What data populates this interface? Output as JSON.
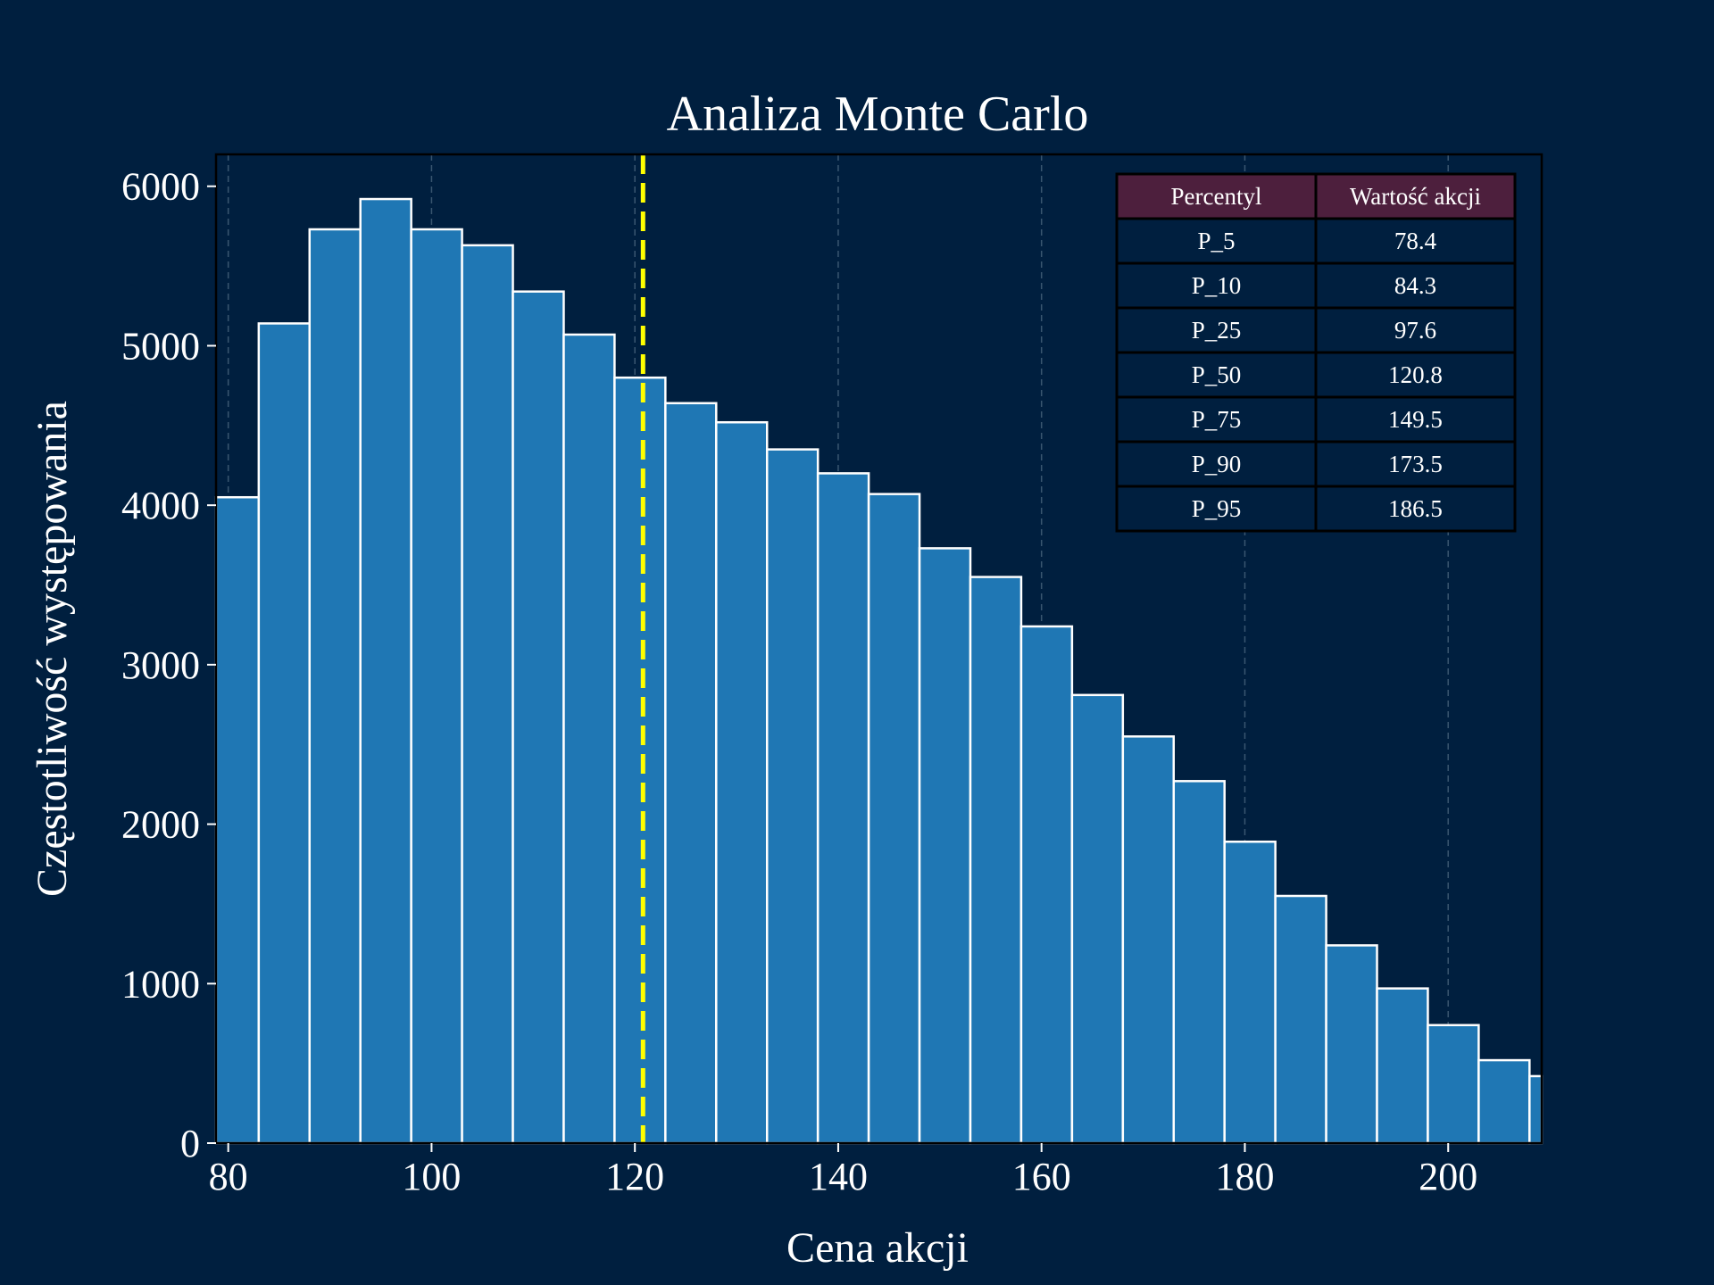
{
  "colors": {
    "background": "#001f3f",
    "bar_fill": "#1f77b4",
    "bar_edge": "#ffffff",
    "median_line": "#ffff00",
    "table_header": "#4d1f3d",
    "table_border": "#000000",
    "grid": "#3a5670"
  },
  "chart_data": {
    "type": "bar",
    "title": "Analiza Monte Carlo",
    "xlabel": "Cena akcji",
    "ylabel": "Częstotliwość występowania",
    "xlim": [
      78.8,
      209.2
    ],
    "ylim": [
      0,
      6200
    ],
    "xticks": [
      80,
      100,
      120,
      140,
      160,
      180,
      200
    ],
    "yticks": [
      0,
      1000,
      2000,
      3000,
      4000,
      5000,
      6000
    ],
    "grid": "vertical dashed",
    "bin_start": 78,
    "bin_width": 5,
    "values": [
      4050,
      5140,
      5730,
      5920,
      5730,
      5630,
      5340,
      5070,
      4800,
      4640,
      4520,
      4350,
      4200,
      4070,
      3730,
      3550,
      3240,
      2810,
      2550,
      2270,
      1890,
      1550,
      1240,
      970,
      740,
      520,
      420
    ],
    "median_line": 120.8,
    "table": {
      "headers": [
        "Percentyl",
        "Wartość akcji"
      ],
      "rows": [
        [
          "P_5",
          "78.4"
        ],
        [
          "P_10",
          "84.3"
        ],
        [
          "P_25",
          "97.6"
        ],
        [
          "P_50",
          "120.8"
        ],
        [
          "P_75",
          "149.5"
        ],
        [
          "P_90",
          "173.5"
        ],
        [
          "P_95",
          "186.5"
        ]
      ]
    }
  }
}
